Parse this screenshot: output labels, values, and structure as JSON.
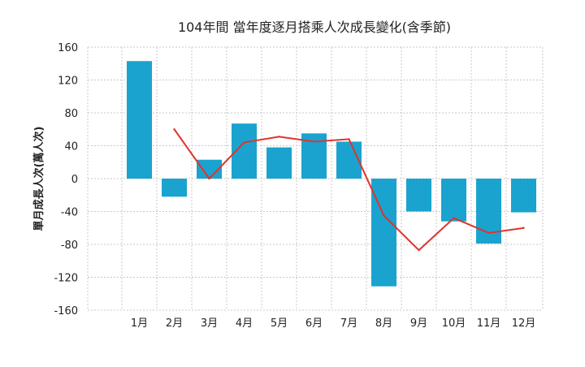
{
  "chart_data": {
    "type": "bar",
    "title": "104年間 當年度逐月搭乘人次成長變化(含季節)",
    "xlabel": "",
    "ylabel": "單月成長人次(萬人次)",
    "categories": [
      "1月",
      "2月",
      "3月",
      "4月",
      "5月",
      "6月",
      "7月",
      "8月",
      "9月",
      "10月",
      "11月",
      "12月"
    ],
    "ylim": [
      -160,
      160
    ],
    "yticks": [
      160,
      120,
      80,
      40,
      0,
      -40,
      -80,
      -120,
      -160
    ],
    "grid": true,
    "legend": "none",
    "series": [
      {
        "type": "bar",
        "color": "#1aa3cf",
        "values": [
          143,
          -22,
          23,
          67,
          38,
          55,
          45,
          -131,
          -40,
          -52,
          -79,
          -41
        ]
      },
      {
        "type": "line",
        "color": "#e0342c",
        "values": [
          null,
          60,
          0,
          44,
          51,
          45,
          48,
          -45,
          -87,
          -48,
          -66,
          -60
        ]
      }
    ]
  }
}
